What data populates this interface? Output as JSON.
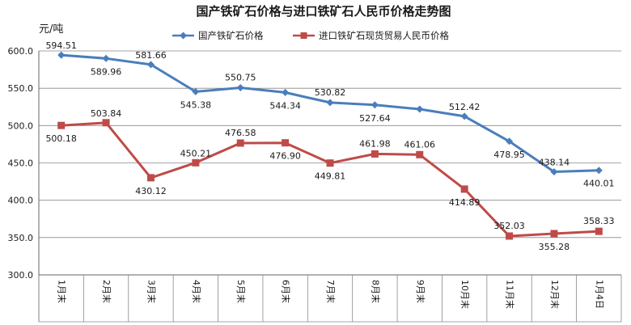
{
  "chart_data": {
    "type": "line",
    "title": "国产铁矿石价格与进口铁矿石人民币价格走势图",
    "ylabel": "元/吨",
    "xlabel": "",
    "ylim": [
      300,
      600
    ],
    "yticks": [
      "300.0",
      "350.0",
      "400.0",
      "450.0",
      "500.0",
      "550.0",
      "600.0"
    ],
    "categories": [
      "1月末",
      "2月末",
      "3月末",
      "4月末",
      "5月末",
      "6月末",
      "7月末",
      "8月末",
      "9月末",
      "10月末",
      "11月末",
      "12月末",
      "1月4日"
    ],
    "legend_position": "top",
    "grid": "horizontal",
    "series": [
      {
        "name": "国产铁矿石价格",
        "color": "#4A7EBB",
        "marker": "diamond",
        "values": [
          594.51,
          589.96,
          581.66,
          545.38,
          550.75,
          544.34,
          530.82,
          527.64,
          522.0,
          512.42,
          478.95,
          438.14,
          440.01
        ],
        "labels": [
          "594.51",
          "589.96",
          "581.66",
          "545.38",
          "550.75",
          "544.34",
          "530.82",
          "527.64",
          "",
          "512.42",
          "478.95",
          "438.14",
          "440.01"
        ]
      },
      {
        "name": "进口铁矿石现货贸易人民币价格",
        "color": "#BE4B48",
        "marker": "square",
        "values": [
          500.18,
          503.84,
          430.12,
          450.21,
          476.58,
          476.9,
          449.81,
          461.98,
          461.06,
          414.89,
          352.03,
          355.28,
          358.33
        ],
        "labels": [
          "500.18",
          "503.84",
          "430.12",
          "450.21",
          "476.58",
          "476.90",
          "449.81",
          "461.98",
          "461.06",
          "414.89",
          "352.03",
          "355.28",
          "358.33"
        ]
      }
    ]
  }
}
